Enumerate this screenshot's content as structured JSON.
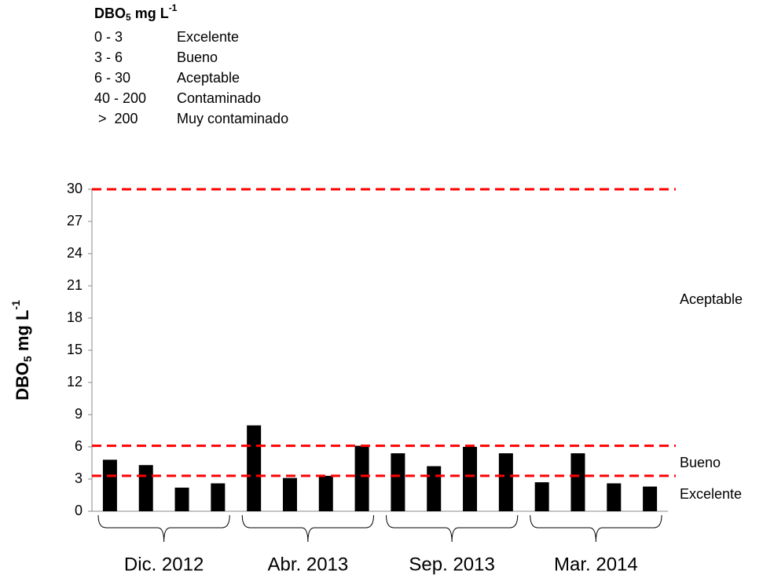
{
  "legend_box": {
    "title": {
      "base": "DBO",
      "sub": "5",
      "unit": " mg L",
      "sup": "-1"
    },
    "rows": [
      [
        "0 - 3",
        "Excelente"
      ],
      [
        "3 - 6",
        "Bueno"
      ],
      [
        "6 - 30",
        "Aceptable"
      ],
      [
        "40 - 200",
        "Contaminado"
      ],
      [
        " >  200",
        "Muy contaminado"
      ]
    ]
  },
  "chart_data": {
    "type": "bar",
    "ylabel": {
      "base": "DBO",
      "sub": "5",
      "unit": " mg L",
      "sup": "-1"
    },
    "categories": [
      null,
      null,
      null,
      null,
      null,
      null,
      null,
      null,
      null,
      null,
      null,
      null,
      null,
      null,
      null,
      null
    ],
    "values": [
      4.8,
      4.3,
      2.2,
      2.6,
      8.0,
      3.1,
      3.3,
      6.1,
      5.4,
      4.2,
      6.0,
      5.4,
      2.7,
      5.4,
      2.6,
      2.3
    ],
    "color": "#000000",
    "group_labels": [
      "Dic. 2012",
      "Abr. 2013",
      "Sep. 2013",
      "Mar. 2014"
    ],
    "ylim": [
      0,
      30
    ],
    "yticks": [
      0,
      3,
      6,
      9,
      12,
      15,
      18,
      21,
      24,
      27,
      30
    ],
    "reference_lines": [
      {
        "value": 30
      },
      {
        "value": 6.1
      },
      {
        "value": 3.3
      }
    ],
    "reference_color": "#ff0000",
    "annotations": [
      "Aceptable",
      "Bueno",
      "Excelente"
    ]
  }
}
